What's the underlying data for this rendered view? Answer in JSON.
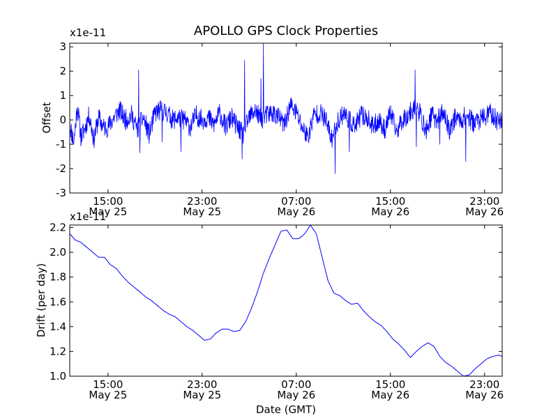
{
  "chart_data": [
    {
      "type": "line",
      "title": "APOLLO GPS Clock Properties",
      "ylabel": "Offset",
      "xlabel": "",
      "y_scale_label": "x1e-11",
      "ylim": [
        -3,
        3.15
      ],
      "xlim_hours": [
        11.75,
        48.5
      ],
      "x_ticks": [
        {
          "hour": 15,
          "time": "15:00",
          "date": "May 25"
        },
        {
          "hour": 23,
          "time": "23:00",
          "date": "May 25"
        },
        {
          "hour": 31,
          "time": "07:00",
          "date": "May 26"
        },
        {
          "hour": 39,
          "time": "15:00",
          "date": "May 26"
        },
        {
          "hour": 47,
          "time": "23:00",
          "date": "May 26"
        }
      ],
      "y_ticks": [
        {
          "value": 3,
          "label": "3"
        },
        {
          "value": 2,
          "label": "2"
        },
        {
          "value": 1,
          "label": "1"
        },
        {
          "value": 0,
          "label": "0"
        },
        {
          "value": -1,
          "label": "-1"
        },
        {
          "value": -2,
          "label": "-2"
        },
        {
          "value": -3,
          "label": "-3"
        }
      ],
      "series": [
        {
          "name": "offset",
          "color": "#0000ff",
          "x_hours": [
            11.75,
            12.1,
            12.4,
            12.7,
            13.0,
            13.4,
            13.8,
            14.2,
            14.6,
            15.0,
            15.5,
            16.0,
            16.5,
            17.0,
            17.5,
            18.0,
            18.5,
            19.0,
            19.5,
            20.0,
            20.5,
            21.0,
            21.5,
            22.0,
            22.5,
            23.0,
            23.5,
            24.0,
            24.5,
            25.0,
            25.5,
            26.0,
            26.5,
            27.0,
            27.5,
            28.0,
            28.5,
            29.0,
            29.5,
            30.0,
            30.5,
            31.0,
            31.5,
            32.0,
            32.5,
            33.0,
            33.5,
            34.0,
            34.5,
            35.0,
            35.5,
            36.0,
            36.5,
            37.0,
            37.5,
            38.0,
            38.5,
            39.0,
            39.5,
            40.0,
            40.5,
            41.0,
            41.5,
            42.0,
            42.5,
            43.0,
            43.5,
            44.0,
            44.5,
            45.0,
            45.5,
            46.0,
            46.5,
            47.0,
            47.5,
            48.0,
            48.5
          ],
          "values": [
            -0.2,
            -0.9,
            0.6,
            -0.7,
            -0.4,
            0.2,
            -0.8,
            0.1,
            -0.3,
            -0.3,
            0.1,
            0.4,
            0.0,
            0.2,
            -0.4,
            0.1,
            -0.6,
            0.3,
            0.4,
            0.3,
            0.0,
            0.1,
            0.0,
            -0.3,
            0.2,
            0.0,
            0.1,
            -0.2,
            0.3,
            -0.3,
            0.1,
            -0.3,
            -0.6,
            0.1,
            0.4,
            0.0,
            0.2,
            0.3,
            0.1,
            -0.2,
            0.6,
            0.3,
            -0.3,
            -0.7,
            0.2,
            0.3,
            0.0,
            -0.8,
            -0.1,
            0.3,
            0.0,
            -0.3,
            0.2,
            0.1,
            -0.3,
            0.0,
            -0.4,
            0.3,
            -0.5,
            0.0,
            0.2,
            0.5,
            0.3,
            -0.5,
            0.2,
            0.0,
            0.3,
            -0.4,
            0.1,
            0.0,
            0.2,
            -0.1,
            0.0,
            0.1,
            0.3,
            0.0,
            0.0
          ],
          "spikes": [
            {
              "hour": 17.6,
              "value": 2.05
            },
            {
              "hour": 17.7,
              "value": -1.35
            },
            {
              "hour": 19.6,
              "value": -0.9
            },
            {
              "hour": 21.2,
              "value": -1.3
            },
            {
              "hour": 26.6,
              "value": 2.45
            },
            {
              "hour": 26.4,
              "value": -1.6
            },
            {
              "hour": 28.2,
              "value": 3.15
            },
            {
              "hour": 28.0,
              "value": 1.7
            },
            {
              "hour": 34.3,
              "value": -2.2
            },
            {
              "hour": 35.5,
              "value": -1.3
            },
            {
              "hour": 41.1,
              "value": 2.05
            },
            {
              "hour": 41.2,
              "value": -1.1
            },
            {
              "hour": 45.4,
              "value": -1.7
            },
            {
              "hour": 43.2,
              "value": -1.0
            }
          ]
        }
      ]
    },
    {
      "type": "line",
      "title": "",
      "ylabel": "Drift (per day)",
      "xlabel": "Date (GMT)",
      "y_scale_label": "x1e-11",
      "ylim": [
        1.0,
        2.22
      ],
      "xlim_hours": [
        11.75,
        48.5
      ],
      "x_ticks": [
        {
          "hour": 15,
          "time": "15:00",
          "date": "May 25"
        },
        {
          "hour": 23,
          "time": "23:00",
          "date": "May 25"
        },
        {
          "hour": 31,
          "time": "07:00",
          "date": "May 26"
        },
        {
          "hour": 39,
          "time": "15:00",
          "date": "May 26"
        },
        {
          "hour": 47,
          "time": "23:00",
          "date": "May 26"
        }
      ],
      "y_ticks": [
        {
          "value": 2.2,
          "label": "2.2"
        },
        {
          "value": 2.0,
          "label": "2.0"
        },
        {
          "value": 1.8,
          "label": "1.8"
        },
        {
          "value": 1.6,
          "label": "1.6"
        },
        {
          "value": 1.4,
          "label": "1.4"
        },
        {
          "value": 1.2,
          "label": "1.2"
        },
        {
          "value": 1.0,
          "label": "1.0"
        }
      ],
      "series": [
        {
          "name": "drift",
          "color": "#0000ff",
          "x_hours": [
            11.75,
            12.2,
            12.7,
            13.2,
            13.7,
            14.2,
            14.7,
            15.2,
            15.7,
            16.2,
            16.7,
            17.2,
            17.7,
            18.2,
            18.7,
            19.2,
            19.7,
            20.2,
            20.7,
            21.2,
            21.7,
            22.2,
            22.7,
            23.2,
            23.7,
            24.2,
            24.7,
            25.2,
            25.7,
            26.2,
            26.7,
            27.2,
            27.7,
            28.2,
            28.7,
            29.2,
            29.7,
            30.2,
            30.7,
            31.2,
            31.5,
            31.8,
            32.2,
            32.7,
            33.2,
            33.7,
            34.2,
            34.7,
            35.2,
            35.7,
            36.2,
            36.7,
            37.2,
            37.7,
            38.2,
            38.7,
            39.2,
            39.7,
            40.2,
            40.7,
            41.2,
            41.7,
            42.2,
            42.7,
            43.2,
            43.7,
            44.2,
            44.7,
            45.2,
            45.7,
            46.2,
            46.7,
            47.2,
            47.7,
            48.2,
            48.5
          ],
          "values": [
            2.15,
            2.1,
            2.08,
            2.04,
            2.0,
            1.96,
            1.96,
            1.9,
            1.87,
            1.81,
            1.76,
            1.72,
            1.68,
            1.64,
            1.61,
            1.57,
            1.53,
            1.5,
            1.48,
            1.44,
            1.4,
            1.37,
            1.33,
            1.29,
            1.3,
            1.35,
            1.38,
            1.38,
            1.36,
            1.37,
            1.44,
            1.55,
            1.68,
            1.83,
            1.95,
            2.06,
            2.17,
            2.18,
            2.11,
            2.11,
            2.13,
            2.16,
            2.22,
            2.15,
            1.96,
            1.77,
            1.67,
            1.65,
            1.61,
            1.58,
            1.59,
            1.53,
            1.48,
            1.44,
            1.41,
            1.36,
            1.3,
            1.26,
            1.21,
            1.15,
            1.2,
            1.24,
            1.27,
            1.24,
            1.16,
            1.11,
            1.08,
            1.04,
            1.0,
            1.01,
            1.06,
            1.1,
            1.14,
            1.16,
            1.17,
            1.16
          ]
        }
      ]
    }
  ]
}
